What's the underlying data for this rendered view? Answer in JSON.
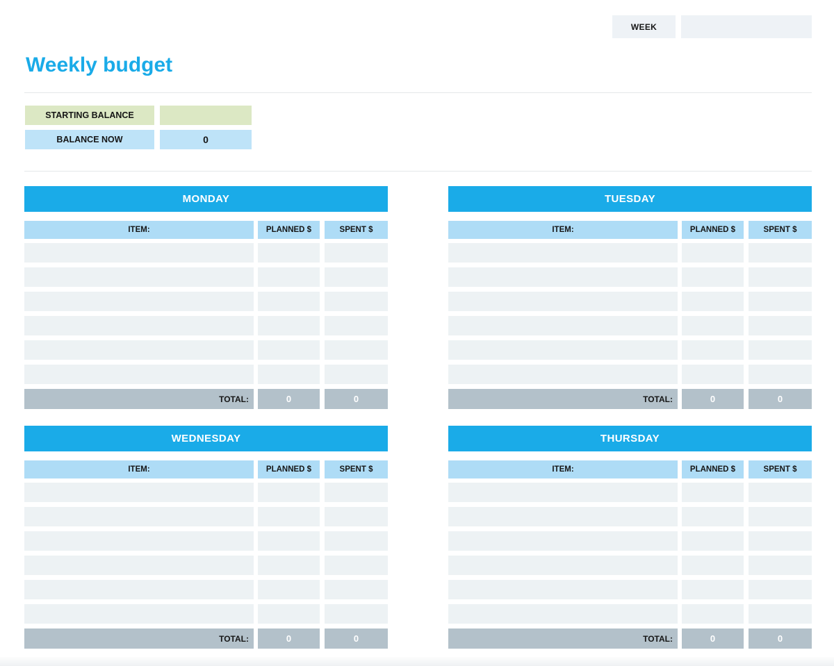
{
  "header": {
    "week_label": "WEEK",
    "week_value": ""
  },
  "title": "Weekly budget",
  "balance": {
    "starting_label": "STARTING BALANCE",
    "starting_value": "",
    "now_label": "BALANCE NOW",
    "now_value": "0"
  },
  "columns": {
    "item": "ITEM:",
    "planned": "PLANNED $",
    "spent": "SPENT $"
  },
  "days": [
    {
      "name": "MONDAY",
      "rows": [
        {
          "item": "",
          "planned": "",
          "spent": ""
        },
        {
          "item": "",
          "planned": "",
          "spent": ""
        },
        {
          "item": "",
          "planned": "",
          "spent": ""
        },
        {
          "item": "",
          "planned": "",
          "spent": ""
        },
        {
          "item": "",
          "planned": "",
          "spent": ""
        },
        {
          "item": "",
          "planned": "",
          "spent": ""
        }
      ],
      "total_label": "TOTAL:",
      "planned_total": "0",
      "spent_total": "0"
    },
    {
      "name": "TUESDAY",
      "rows": [
        {
          "item": "",
          "planned": "",
          "spent": ""
        },
        {
          "item": "",
          "planned": "",
          "spent": ""
        },
        {
          "item": "",
          "planned": "",
          "spent": ""
        },
        {
          "item": "",
          "planned": "",
          "spent": ""
        },
        {
          "item": "",
          "planned": "",
          "spent": ""
        },
        {
          "item": "",
          "planned": "",
          "spent": ""
        }
      ],
      "total_label": "TOTAL:",
      "planned_total": "0",
      "spent_total": "0"
    },
    {
      "name": "WEDNESDAY",
      "rows": [
        {
          "item": "",
          "planned": "",
          "spent": ""
        },
        {
          "item": "",
          "planned": "",
          "spent": ""
        },
        {
          "item": "",
          "planned": "",
          "spent": ""
        },
        {
          "item": "",
          "planned": "",
          "spent": ""
        },
        {
          "item": "",
          "planned": "",
          "spent": ""
        },
        {
          "item": "",
          "planned": "",
          "spent": ""
        }
      ],
      "total_label": "TOTAL:",
      "planned_total": "0",
      "spent_total": "0"
    },
    {
      "name": "THURSDAY",
      "rows": [
        {
          "item": "",
          "planned": "",
          "spent": ""
        },
        {
          "item": "",
          "planned": "",
          "spent": ""
        },
        {
          "item": "",
          "planned": "",
          "spent": ""
        },
        {
          "item": "",
          "planned": "",
          "spent": ""
        },
        {
          "item": "",
          "planned": "",
          "spent": ""
        },
        {
          "item": "",
          "planned": "",
          "spent": ""
        }
      ],
      "total_label": "TOTAL:",
      "planned_total": "0",
      "spent_total": "0"
    }
  ],
  "colors": {
    "accent_blue": "#1aabe8",
    "column_header_blue": "#aedcf6",
    "balance_blue": "#bee3f8",
    "balance_green": "#dce8c4",
    "empty_row": "#edf2f4",
    "total_gray": "#b3c1ca",
    "input_box_gray": "#eef2f6"
  }
}
